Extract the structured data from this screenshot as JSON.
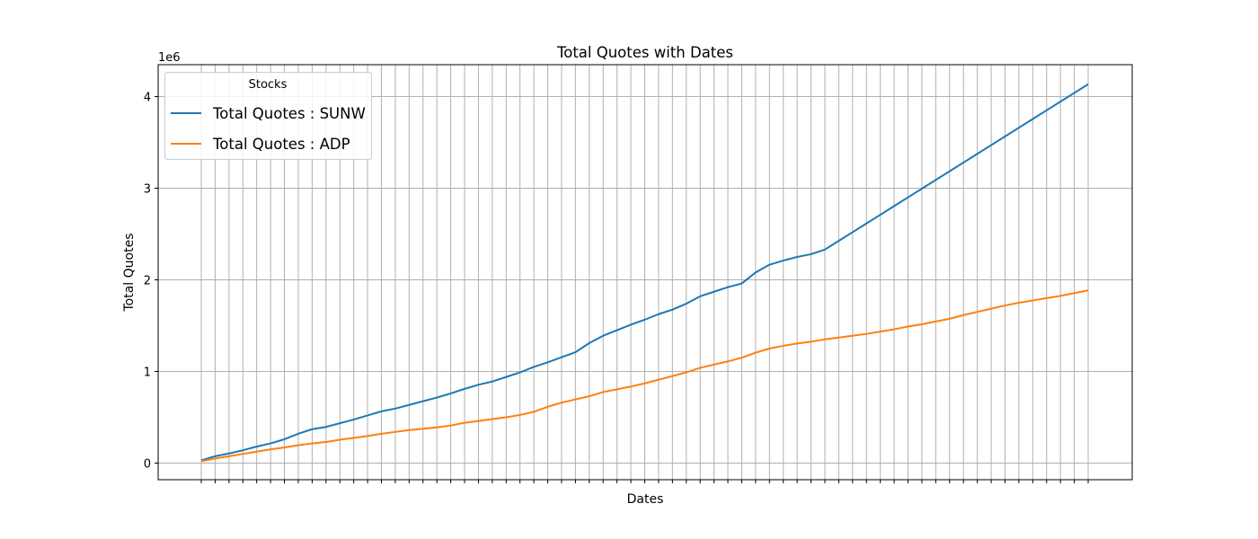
{
  "chart_data": {
    "type": "line",
    "title": "Total Quotes with Dates",
    "xlabel": "Dates",
    "ylabel": "Total Quotes",
    "y_offset_label": "1e6",
    "ylim": [
      -0.2,
      4.34
    ],
    "y_ticks": [
      0,
      1,
      2,
      3,
      4
    ],
    "y_tick_labels": [
      "0",
      "1",
      "2",
      "3",
      "4"
    ],
    "x_tick_count": 65,
    "x_tick_labels_visible": false,
    "grid": true,
    "legend": {
      "title": "Stocks",
      "placement": "top-left"
    },
    "series": [
      {
        "name": "Total Quotes : SUNW",
        "color": "#1f77b4",
        "values": [
          0.03,
          0.075,
          0.105,
          0.14,
          0.18,
          0.215,
          0.26,
          0.32,
          0.37,
          0.395,
          0.435,
          0.475,
          0.52,
          0.565,
          0.595,
          0.635,
          0.675,
          0.715,
          0.76,
          0.81,
          0.855,
          0.89,
          0.94,
          0.99,
          1.05,
          1.1,
          1.155,
          1.21,
          1.31,
          1.39,
          1.45,
          1.51,
          1.565,
          1.625,
          1.675,
          1.74,
          1.82,
          1.87,
          1.92,
          1.96,
          2.08,
          2.165,
          2.21,
          2.25,
          2.28,
          2.33,
          2.425,
          2.52,
          2.615,
          2.71,
          2.805,
          2.9,
          2.995,
          3.09,
          3.185,
          3.28,
          3.375,
          3.47,
          3.565,
          3.66,
          3.755,
          3.85,
          3.945,
          4.04,
          4.135
        ]
      },
      {
        "name": "Total Quotes : ADP",
        "color": "#ff7f0e",
        "values": [
          0.02,
          0.05,
          0.075,
          0.1,
          0.125,
          0.15,
          0.17,
          0.195,
          0.215,
          0.23,
          0.255,
          0.275,
          0.295,
          0.32,
          0.34,
          0.36,
          0.375,
          0.39,
          0.41,
          0.44,
          0.46,
          0.48,
          0.5,
          0.525,
          0.56,
          0.615,
          0.66,
          0.695,
          0.73,
          0.775,
          0.805,
          0.835,
          0.87,
          0.91,
          0.95,
          0.99,
          1.04,
          1.075,
          1.11,
          1.15,
          1.205,
          1.25,
          1.28,
          1.305,
          1.325,
          1.35,
          1.37,
          1.39,
          1.41,
          1.435,
          1.46,
          1.49,
          1.515,
          1.545,
          1.575,
          1.615,
          1.65,
          1.685,
          1.72,
          1.75,
          1.775,
          1.8,
          1.825,
          1.855,
          1.885
        ]
      }
    ]
  }
}
